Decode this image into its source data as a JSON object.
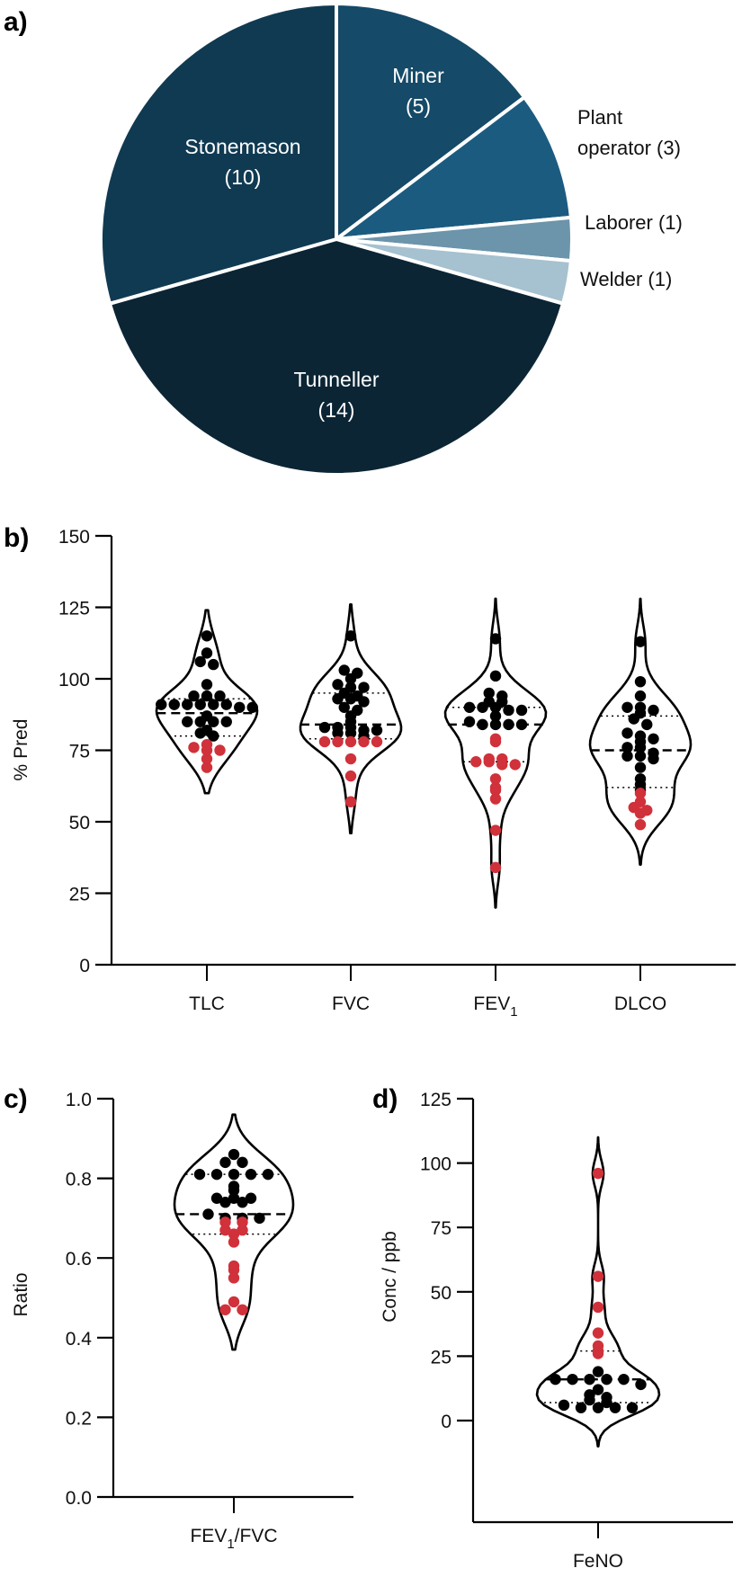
{
  "chart_data": [
    {
      "id": "a",
      "type": "pie",
      "panel_label": "a)",
      "title": "",
      "start": "12 o'clock, clockwise",
      "slices": [
        {
          "name": "Miner",
          "value": 5,
          "label_line1": "Miner",
          "label_line2": "(5)",
          "color": "#154a68",
          "label_inside": true
        },
        {
          "name": "Plant operator",
          "value": 3,
          "label_line1": "Plant",
          "label_line2": "operator (3)",
          "color": "#1b5b80",
          "label_inside": false
        },
        {
          "name": "Laborer",
          "value": 1,
          "label_line1": "Laborer (1)",
          "label_line2": "",
          "color": "#6c94ab",
          "label_inside": false
        },
        {
          "name": "Welder",
          "value": 1,
          "label_line1": "Welder (1)",
          "label_line2": "",
          "color": "#a6c1d0",
          "label_inside": false
        },
        {
          "name": "Tunneller",
          "value": 14,
          "label_line1": "Tunneller",
          "label_line2": "(14)",
          "color": "#0b2535",
          "label_inside": true
        },
        {
          "name": "Stonemason",
          "value": 10,
          "label_line1": "Stonemason",
          "label_line2": "(10)",
          "color": "#103a52",
          "label_inside": true
        }
      ]
    },
    {
      "id": "b",
      "type": "violin",
      "panel_label": "b)",
      "ylabel": "% Pred",
      "xlabel": "",
      "ylim": [
        0,
        150
      ],
      "yticks": [
        0,
        25,
        50,
        75,
        100,
        125,
        150
      ],
      "categories": [
        {
          "label": "TLC",
          "sub": ""
        },
        {
          "label": "FVC",
          "sub": ""
        },
        {
          "label": "FEV",
          "sub": "1"
        },
        {
          "label": "DLCO",
          "sub": ""
        }
      ],
      "point_colors": {
        "normal": "#000000",
        "abnormal": "#d0313a"
      },
      "series": [
        {
          "name": "TLC",
          "median": 88,
          "q1": 80,
          "q3": 93,
          "range": [
            60,
            124
          ],
          "normal": [
            115,
            109,
            106,
            105,
            98,
            94,
            94,
            94,
            91,
            91,
            91,
            91,
            91,
            91,
            90,
            90,
            87,
            85,
            85,
            85,
            85,
            82,
            81,
            80
          ],
          "abnormal": [
            77,
            76,
            75,
            75,
            72,
            69
          ]
        },
        {
          "name": "FVC",
          "median": 84,
          "q1": 79,
          "q3": 95,
          "range": [
            46,
            126
          ],
          "normal": [
            115,
            103,
            102,
            100,
            98,
            97,
            97,
            95,
            94,
            93,
            93,
            92,
            90,
            89,
            87,
            85,
            83,
            83,
            83,
            82,
            82,
            81,
            81,
            80
          ],
          "abnormal": [
            78,
            78,
            78,
            78,
            78,
            72,
            66,
            57
          ]
        },
        {
          "name": "FEV1",
          "median": 84,
          "q1": 71,
          "q3": 90,
          "range": [
            20,
            128
          ],
          "normal": [
            114,
            101,
            95,
            94,
            92,
            92,
            90,
            90,
            90,
            89,
            89,
            87,
            85,
            84,
            84,
            84,
            84
          ],
          "abnormal": [
            79,
            78,
            72,
            72,
            71,
            71,
            70,
            70,
            65,
            62,
            61,
            58,
            47,
            34
          ]
        },
        {
          "name": "DLCO",
          "median": 75,
          "q1": 62,
          "q3": 87,
          "range": [
            35,
            128
          ],
          "normal": [
            113,
            99,
            94,
            90,
            90,
            89,
            88,
            86,
            84,
            81,
            80,
            79,
            78,
            76,
            76,
            74,
            73,
            73,
            72,
            69,
            65,
            63,
            61
          ],
          "abnormal": [
            60,
            57,
            55,
            54,
            53,
            49
          ]
        }
      ]
    },
    {
      "id": "c",
      "type": "violin",
      "panel_label": "c)",
      "ylabel": "Ratio",
      "xlabel": "",
      "ylim": [
        0,
        1.0
      ],
      "yticks": [
        0.0,
        0.2,
        0.4,
        0.6,
        0.8,
        1.0
      ],
      "ytick_labels": [
        "0.0",
        "0.2",
        "0.4",
        "0.6",
        "0.8",
        "1.0"
      ],
      "categories": [
        {
          "label": "FEV",
          "sub": "1",
          "suffix": "/FVC"
        }
      ],
      "point_colors": {
        "normal": "#000000",
        "abnormal": "#d0313a"
      },
      "series": [
        {
          "name": "FEV1/FVC",
          "median": 0.71,
          "q1": 0.66,
          "q3": 0.81,
          "range": [
            0.37,
            0.96
          ],
          "normal": [
            0.86,
            0.84,
            0.84,
            0.81,
            0.81,
            0.81,
            0.81,
            0.81,
            0.78,
            0.77,
            0.75,
            0.75,
            0.75,
            0.74,
            0.74,
            0.71,
            0.7,
            0.7,
            0.7
          ],
          "abnormal": [
            0.69,
            0.69,
            0.67,
            0.67,
            0.66,
            0.64,
            0.58,
            0.57,
            0.55,
            0.49,
            0.47,
            0.47
          ]
        }
      ]
    },
    {
      "id": "d",
      "type": "violin",
      "panel_label": "d)",
      "ylabel": "Conc / ppb",
      "xlabel": "",
      "ylim": [
        -20,
        125
      ],
      "yticks": [
        0,
        25,
        50,
        75,
        100,
        125
      ],
      "categories": [
        {
          "label": "FeNO",
          "sub": ""
        }
      ],
      "point_colors": {
        "normal": "#000000",
        "abnormal": "#d0313a"
      },
      "series": [
        {
          "name": "FeNO",
          "median": 16,
          "q1": 7,
          "q3": 27,
          "range": [
            -10,
            110
          ],
          "normal": [
            19,
            16,
            16,
            16,
            16,
            16,
            14,
            12,
            10,
            9,
            8,
            7,
            6,
            5,
            5,
            5,
            5
          ],
          "abnormal": [
            96,
            56,
            44,
            34,
            29,
            27,
            26
          ]
        }
      ]
    }
  ]
}
